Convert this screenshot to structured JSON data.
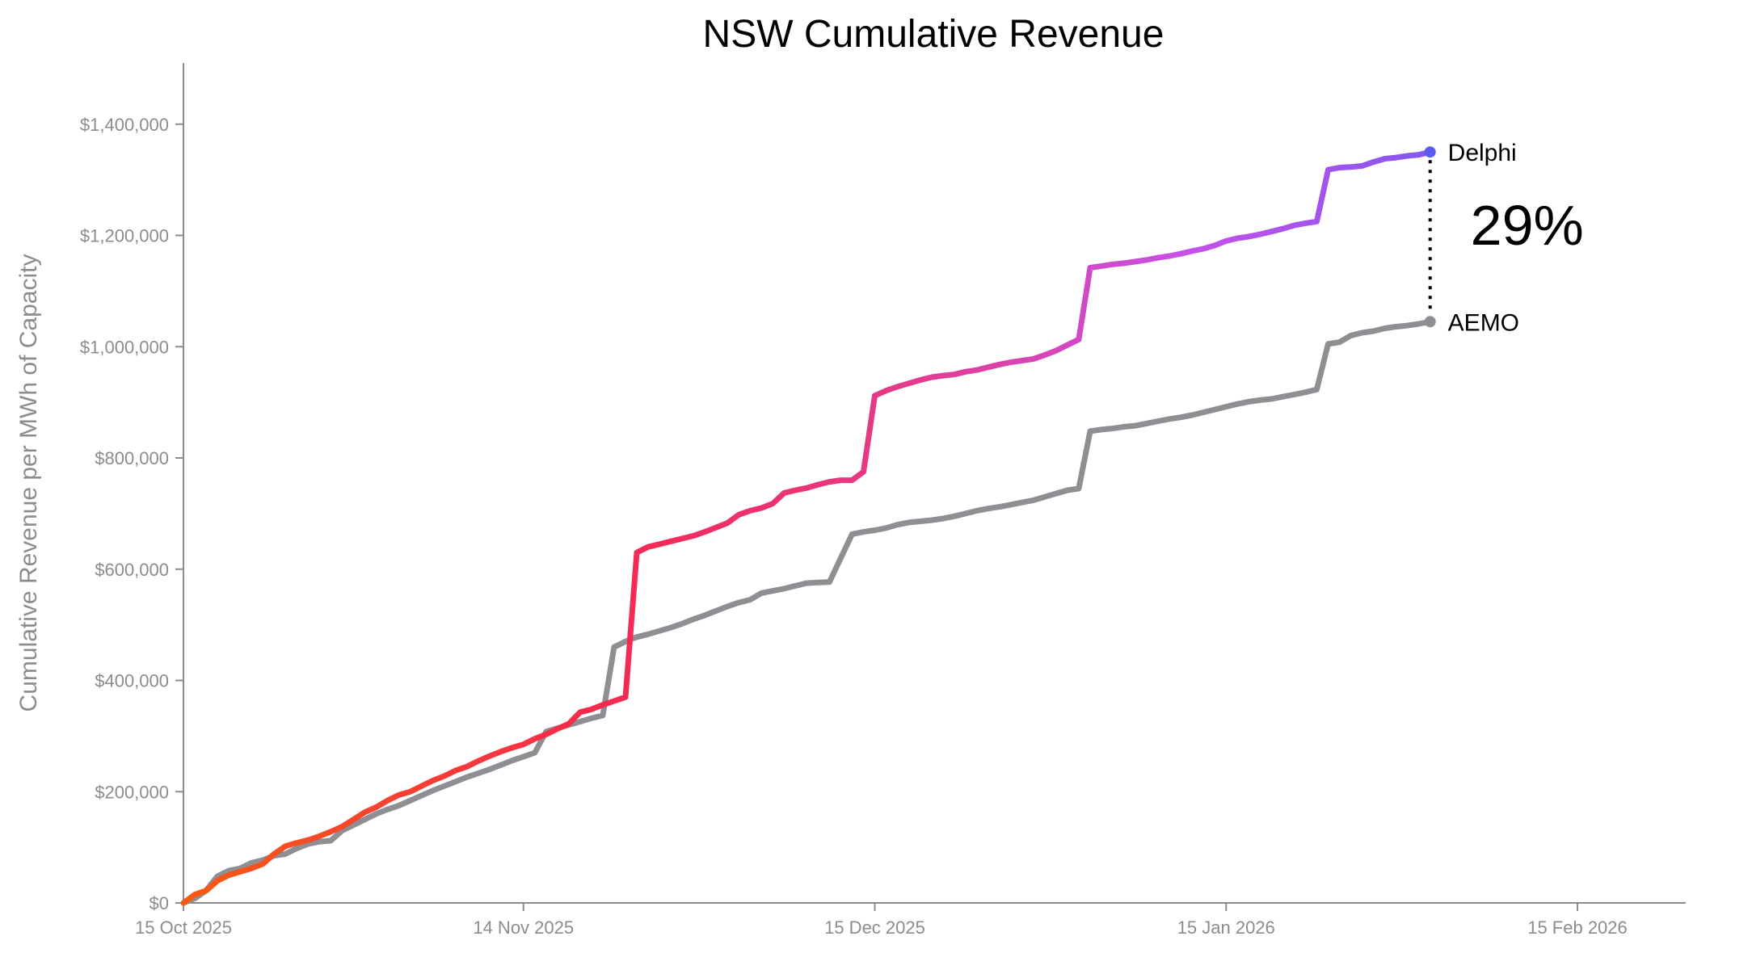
{
  "chart_data": {
    "type": "line",
    "title": "NSW Cumulative Revenue",
    "xlabel": "",
    "ylabel": "Cumulative Revenue per MWh of Capacity",
    "x_tick_labels": [
      "15 Oct 2025",
      "14 Nov 2025",
      "15 Dec 2025",
      "15 Jan 2026",
      "15 Feb 2026"
    ],
    "x_tick_days": [
      0,
      30,
      61,
      92,
      123
    ],
    "xlim_days": [
      0,
      133
    ],
    "y_tick_labels": [
      "$0",
      "$200,000",
      "$400,000",
      "$600,000",
      "$800,000",
      "$1,000,000",
      "$1,200,000",
      "$1,400,000"
    ],
    "y_ticks": [
      0,
      200000,
      400000,
      600000,
      800000,
      1000000,
      1200000,
      1400000
    ],
    "ylim": [
      0,
      1510000
    ],
    "grid": false,
    "gradient_colors": [
      "#f75a14",
      "#f5294e",
      "#e43b8c",
      "#c751e8",
      "#5b5bf0"
    ],
    "aemo_color": "#8e8e93",
    "series": [
      {
        "name": "Delphi",
        "points": [
          [
            0,
            0
          ],
          [
            1,
            15000
          ],
          [
            2,
            22000
          ],
          [
            3,
            40000
          ],
          [
            4,
            50000
          ],
          [
            5,
            56000
          ],
          [
            6,
            62000
          ],
          [
            7,
            70000
          ],
          [
            8,
            88000
          ],
          [
            9,
            102000
          ],
          [
            10,
            108000
          ],
          [
            11,
            113000
          ],
          [
            12,
            120000
          ],
          [
            13,
            128000
          ],
          [
            14,
            137000
          ],
          [
            15,
            150000
          ],
          [
            16,
            163000
          ],
          [
            17,
            172000
          ],
          [
            18,
            184000
          ],
          [
            19,
            194000
          ],
          [
            20,
            200000
          ],
          [
            21,
            210000
          ],
          [
            22,
            220000
          ],
          [
            23,
            228000
          ],
          [
            24,
            238000
          ],
          [
            25,
            245000
          ],
          [
            26,
            255000
          ],
          [
            27,
            264000
          ],
          [
            28,
            272000
          ],
          [
            29,
            279000
          ],
          [
            30,
            285000
          ],
          [
            31,
            295000
          ],
          [
            32,
            303000
          ],
          [
            33,
            313000
          ],
          [
            34,
            322000
          ],
          [
            35,
            343000
          ],
          [
            36,
            348000
          ],
          [
            37,
            356000
          ],
          [
            38,
            363000
          ],
          [
            39,
            370000
          ],
          [
            40,
            630000
          ],
          [
            41,
            640000
          ],
          [
            42,
            645000
          ],
          [
            43,
            650000
          ],
          [
            44,
            655000
          ],
          [
            45,
            660000
          ],
          [
            46,
            667000
          ],
          [
            47,
            675000
          ],
          [
            48,
            683000
          ],
          [
            49,
            698000
          ],
          [
            50,
            705000
          ],
          [
            51,
            710000
          ],
          [
            52,
            718000
          ],
          [
            53,
            737000
          ],
          [
            54,
            742000
          ],
          [
            55,
            746000
          ],
          [
            56,
            752000
          ],
          [
            57,
            757000
          ],
          [
            58,
            760000
          ],
          [
            59,
            760000
          ],
          [
            60,
            775000
          ],
          [
            61,
            912000
          ],
          [
            62,
            921000
          ],
          [
            63,
            928000
          ],
          [
            64,
            934000
          ],
          [
            65,
            940000
          ],
          [
            66,
            945000
          ],
          [
            67,
            948000
          ],
          [
            68,
            950000
          ],
          [
            69,
            955000
          ],
          [
            70,
            958000
          ],
          [
            71,
            963000
          ],
          [
            72,
            968000
          ],
          [
            73,
            972000
          ],
          [
            74,
            975000
          ],
          [
            75,
            978000
          ],
          [
            76,
            985000
          ],
          [
            77,
            993000
          ],
          [
            78,
            1003000
          ],
          [
            79,
            1013000
          ],
          [
            80,
            1142000
          ],
          [
            81,
            1145000
          ],
          [
            82,
            1148000
          ],
          [
            83,
            1150000
          ],
          [
            84,
            1153000
          ],
          [
            85,
            1156000
          ],
          [
            86,
            1160000
          ],
          [
            87,
            1163000
          ],
          [
            88,
            1167000
          ],
          [
            89,
            1172000
          ],
          [
            90,
            1176000
          ],
          [
            91,
            1182000
          ],
          [
            92,
            1190000
          ],
          [
            93,
            1195000
          ],
          [
            94,
            1198000
          ],
          [
            95,
            1202000
          ],
          [
            96,
            1207000
          ],
          [
            97,
            1212000
          ],
          [
            98,
            1218000
          ],
          [
            99,
            1222000
          ],
          [
            100,
            1225000
          ],
          [
            101,
            1318000
          ],
          [
            102,
            1322000
          ],
          [
            103,
            1323000
          ],
          [
            104,
            1325000
          ],
          [
            105,
            1332000
          ],
          [
            106,
            1338000
          ],
          [
            107,
            1340000
          ],
          [
            108,
            1343000
          ],
          [
            109,
            1345000
          ],
          [
            110,
            1350000
          ]
        ]
      },
      {
        "name": "AEMO",
        "points": [
          [
            0,
            0
          ],
          [
            1,
            8000
          ],
          [
            2,
            22000
          ],
          [
            3,
            48000
          ],
          [
            4,
            58000
          ],
          [
            5,
            62000
          ],
          [
            6,
            72000
          ],
          [
            7,
            77000
          ],
          [
            8,
            85000
          ],
          [
            9,
            88000
          ],
          [
            10,
            98000
          ],
          [
            11,
            106000
          ],
          [
            12,
            110000
          ],
          [
            13,
            112000
          ],
          [
            14,
            130000
          ],
          [
            15,
            140000
          ],
          [
            16,
            150000
          ],
          [
            17,
            160000
          ],
          [
            18,
            168000
          ],
          [
            19,
            175000
          ],
          [
            20,
            184000
          ],
          [
            21,
            193000
          ],
          [
            22,
            202000
          ],
          [
            23,
            210000
          ],
          [
            24,
            218000
          ],
          [
            25,
            226000
          ],
          [
            26,
            233000
          ],
          [
            27,
            240000
          ],
          [
            28,
            248000
          ],
          [
            29,
            256000
          ],
          [
            30,
            263000
          ],
          [
            31,
            270000
          ],
          [
            32,
            308000
          ],
          [
            33,
            314000
          ],
          [
            34,
            320000
          ],
          [
            35,
            326000
          ],
          [
            36,
            332000
          ],
          [
            37,
            337000
          ],
          [
            38,
            460000
          ],
          [
            39,
            470000
          ],
          [
            40,
            478000
          ],
          [
            41,
            483000
          ],
          [
            42,
            489000
          ],
          [
            43,
            495000
          ],
          [
            44,
            502000
          ],
          [
            45,
            510000
          ],
          [
            46,
            517000
          ],
          [
            47,
            525000
          ],
          [
            48,
            533000
          ],
          [
            49,
            540000
          ],
          [
            50,
            545000
          ],
          [
            51,
            557000
          ],
          [
            52,
            561000
          ],
          [
            53,
            565000
          ],
          [
            54,
            570000
          ],
          [
            55,
            575000
          ],
          [
            56,
            576000
          ],
          [
            57,
            577000
          ],
          [
            58,
            620000
          ],
          [
            59,
            663000
          ],
          [
            60,
            667000
          ],
          [
            61,
            670000
          ],
          [
            62,
            674000
          ],
          [
            63,
            680000
          ],
          [
            64,
            684000
          ],
          [
            65,
            686000
          ],
          [
            66,
            688000
          ],
          [
            67,
            691000
          ],
          [
            68,
            695000
          ],
          [
            69,
            700000
          ],
          [
            70,
            705000
          ],
          [
            71,
            709000
          ],
          [
            72,
            712000
          ],
          [
            73,
            716000
          ],
          [
            74,
            720000
          ],
          [
            75,
            724000
          ],
          [
            76,
            730000
          ],
          [
            77,
            736000
          ],
          [
            78,
            742000
          ],
          [
            79,
            745000
          ],
          [
            80,
            848000
          ],
          [
            81,
            851000
          ],
          [
            82,
            853000
          ],
          [
            83,
            856000
          ],
          [
            84,
            858000
          ],
          [
            85,
            862000
          ],
          [
            86,
            866000
          ],
          [
            87,
            870000
          ],
          [
            88,
            873000
          ],
          [
            89,
            877000
          ],
          [
            90,
            882000
          ],
          [
            91,
            887000
          ],
          [
            92,
            892000
          ],
          [
            93,
            897000
          ],
          [
            94,
            901000
          ],
          [
            95,
            904000
          ],
          [
            96,
            906000
          ],
          [
            97,
            910000
          ],
          [
            98,
            914000
          ],
          [
            99,
            918000
          ],
          [
            100,
            923000
          ],
          [
            101,
            1005000
          ],
          [
            102,
            1008000
          ],
          [
            103,
            1020000
          ],
          [
            104,
            1025000
          ],
          [
            105,
            1028000
          ],
          [
            106,
            1033000
          ],
          [
            107,
            1036000
          ],
          [
            108,
            1038000
          ],
          [
            109,
            1041000
          ],
          [
            110,
            1045000
          ]
        ]
      }
    ],
    "annotation": {
      "text": "29%",
      "style": "dotted vertical connector between series end points"
    }
  }
}
